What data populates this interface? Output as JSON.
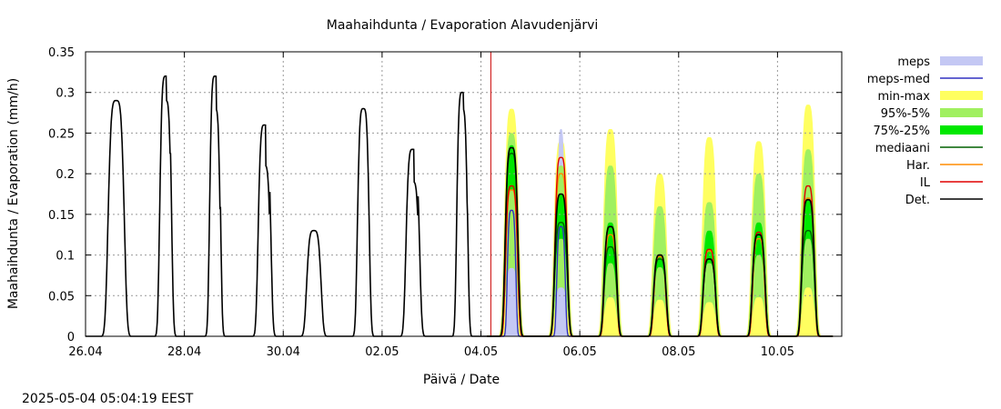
{
  "chart_data": {
    "type": "area",
    "title": "Maahaihdunta / Evaporation  Alavudenjärvi",
    "xlabel": "Päivä / Date",
    "ylabel": "Maahaihdunta / Evaporation (mm/h)",
    "timestamp": "2025-05-04  05:04:19 EEST",
    "grid": true,
    "legend_position": "right",
    "x_unit": "days since 26.04 00:00",
    "xlim": [
      0,
      15.3
    ],
    "ylim": [
      0,
      0.35
    ],
    "forecast_start": 8.2,
    "x_ticks": [
      {
        "x": 0,
        "label": "26.04"
      },
      {
        "x": 2,
        "label": "28.04"
      },
      {
        "x": 4,
        "label": "30.04"
      },
      {
        "x": 6,
        "label": "02.05"
      },
      {
        "x": 8,
        "label": "04.05"
      },
      {
        "x": 10,
        "label": "06.05"
      },
      {
        "x": 12,
        "label": "08.05"
      },
      {
        "x": 14,
        "label": "10.05"
      }
    ],
    "y_ticks": [
      {
        "y": 0,
        "label": "0"
      },
      {
        "y": 0.05,
        "label": "0.05"
      },
      {
        "y": 0.1,
        "label": "0.1"
      },
      {
        "y": 0.15,
        "label": "0.15"
      },
      {
        "y": 0.2,
        "label": "0.2"
      },
      {
        "y": 0.25,
        "label": "0.25"
      },
      {
        "y": 0.3,
        "label": "0.3"
      },
      {
        "y": 0.35,
        "label": "0.35"
      }
    ],
    "legend": [
      {
        "label": "meps",
        "kind": "box",
        "color": "#c4c8f4"
      },
      {
        "label": "meps-med",
        "kind": "line",
        "color": "#3030c0"
      },
      {
        "label": "min-max",
        "kind": "box",
        "color": "#ffff60"
      },
      {
        "label": "95%-5%",
        "kind": "box",
        "color": "#a0f060"
      },
      {
        "label": "75%-25%",
        "kind": "box",
        "color": "#00e800"
      },
      {
        "label": "mediaani",
        "kind": "line",
        "color": "#006000"
      },
      {
        "label": "Har.",
        "kind": "line",
        "color": "#ff8c00"
      },
      {
        "label": "IL",
        "kind": "line",
        "color": "#e00000"
      },
      {
        "label": "Det.",
        "kind": "line",
        "color": "#000000"
      }
    ],
    "history_peaks": [
      {
        "day": 0,
        "peak": 0.29,
        "width": 0.18,
        "notch": 0.0
      },
      {
        "day": 1,
        "peak": 0.32,
        "width": 0.13,
        "notch": 0.03
      },
      {
        "day": 2,
        "peak": 0.32,
        "width": 0.12,
        "notch": 0.04
      },
      {
        "day": 3,
        "peak": 0.26,
        "width": 0.14,
        "notch": 0.05
      },
      {
        "day": 4,
        "peak": 0.13,
        "width": 0.16,
        "notch": 0.0
      },
      {
        "day": 5,
        "peak": 0.28,
        "width": 0.13,
        "notch": 0.0
      },
      {
        "day": 6,
        "peak": 0.23,
        "width": 0.15,
        "notch": 0.04
      },
      {
        "day": 7,
        "peak": 0.3,
        "width": 0.12,
        "notch": 0.02
      }
    ],
    "forecast_days": [
      {
        "day": 8,
        "meps": 0.16,
        "meps_med": 0.155,
        "minmax": 0.28,
        "p95": 0.25,
        "p75": 0.235,
        "p25": 0.18,
        "p5": 0.14,
        "min": 0.11,
        "mediaani": 0.225,
        "har": 0.18,
        "il": 0.185,
        "det": 0.232
      },
      {
        "day": 9,
        "meps": 0.255,
        "meps_med": 0.135,
        "minmax": 0.24,
        "p95": 0.21,
        "p75": 0.175,
        "p25": 0.12,
        "p5": 0.1,
        "min": 0.08,
        "mediaani": 0.14,
        "har": 0.2,
        "il": 0.22,
        "det": 0.175
      },
      {
        "day": 10,
        "meps": 0.0,
        "meps_med": 0.0,
        "minmax": 0.255,
        "p95": 0.21,
        "p75": 0.14,
        "p25": 0.09,
        "p5": 0.08,
        "min": 0.06,
        "mediaani": 0.11,
        "har": 0.125,
        "il": 0.135,
        "det": 0.135
      },
      {
        "day": 11,
        "meps": 0.0,
        "meps_med": 0.0,
        "minmax": 0.2,
        "p95": 0.16,
        "p75": 0.1,
        "p25": 0.085,
        "p5": 0.075,
        "min": 0.06,
        "mediaani": 0.095,
        "har": 0.098,
        "il": 0.1,
        "det": 0.1
      },
      {
        "day": 12,
        "meps": 0.0,
        "meps_med": 0.0,
        "minmax": 0.245,
        "p95": 0.165,
        "p75": 0.13,
        "p25": 0.09,
        "p5": 0.07,
        "min": 0.05,
        "mediaani": 0.095,
        "har": 0.105,
        "il": 0.107,
        "det": 0.095
      },
      {
        "day": 13,
        "meps": 0.0,
        "meps_med": 0.0,
        "minmax": 0.24,
        "p95": 0.2,
        "p75": 0.14,
        "p25": 0.1,
        "p5": 0.08,
        "min": 0.06,
        "mediaani": 0.125,
        "har": 0.12,
        "il": 0.128,
        "det": 0.125
      },
      {
        "day": 14,
        "meps": 0.0,
        "meps_med": 0.0,
        "minmax": 0.285,
        "p95": 0.23,
        "p75": 0.17,
        "p25": 0.12,
        "p5": 0.1,
        "min": 0.08,
        "mediaani": 0.13,
        "har": 0.17,
        "il": 0.185,
        "det": 0.168
      }
    ]
  }
}
